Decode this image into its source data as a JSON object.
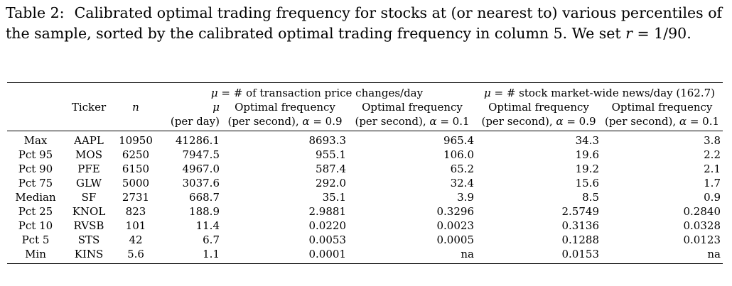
{
  "caption": {
    "label": "Table 2:",
    "text_1": "Calibrated optimal trading frequency for stocks at (or nearest to) various percentiles of the sample, sorted by the calibrated optimal trading frequency in column 5. We set ",
    "var_r": "r",
    "text_2": " = 1/90."
  },
  "table": {
    "group_headers": {
      "g1_mu": "μ",
      "g1_text": " = # of transaction price changes/day",
      "g2_mu": "μ",
      "g2_text": " = # stock market-wide news/day (162.7)"
    },
    "headers": {
      "ticker": "Ticker",
      "n": "n",
      "mu": "μ",
      "mu_unit": "(per day)",
      "of1": "Optimal frequency",
      "of1_unit": "(per second), ",
      "alpha": "α",
      "of1_eq": " = 0.9",
      "of2": "Optimal frequency",
      "of2_unit": "(per second), ",
      "of2_eq": " = 0.1",
      "of3": "Optimal frequency",
      "of3_unit": "(per second), ",
      "of3_eq": " = 0.9",
      "of4": "Optimal frequency",
      "of4_unit": "(per second), ",
      "of4_eq": " = 0.1"
    },
    "rows": [
      {
        "pct": "Max",
        "ticker": "AAPL",
        "n": "10950",
        "mu": "41286.1",
        "f1": "8693.3",
        "f2": "965.4",
        "f3": "34.3",
        "f4": "3.8"
      },
      {
        "pct": "Pct 95",
        "ticker": "MOS",
        "n": "6250",
        "mu": "7947.5",
        "f1": "955.1",
        "f2": "106.0",
        "f3": "19.6",
        "f4": "2.2"
      },
      {
        "pct": "Pct 90",
        "ticker": "PFE",
        "n": "6150",
        "mu": "4967.0",
        "f1": "587.4",
        "f2": "65.2",
        "f3": "19.2",
        "f4": "2.1"
      },
      {
        "pct": "Pct 75",
        "ticker": "GLW",
        "n": "5000",
        "mu": "3037.6",
        "f1": "292.0",
        "f2": "32.4",
        "f3": "15.6",
        "f4": "1.7"
      },
      {
        "pct": "Median",
        "ticker": "SF",
        "n": "2731",
        "mu": "668.7",
        "f1": "35.1",
        "f2": "3.9",
        "f3": "8.5",
        "f4": "0.9"
      },
      {
        "pct": "Pct 25",
        "ticker": "KNOL",
        "n": "823",
        "mu": "188.9",
        "f1": "2.9881",
        "f2": "0.3296",
        "f3": "2.5749",
        "f4": "0.2840"
      },
      {
        "pct": "Pct 10",
        "ticker": "RVSB",
        "n": "101",
        "mu": "11.4",
        "f1": "0.0220",
        "f2": "0.0023",
        "f3": "0.3136",
        "f4": "0.0328"
      },
      {
        "pct": "Pct 5",
        "ticker": "STS",
        "n": "42",
        "mu": "6.7",
        "f1": "0.0053",
        "f2": "0.0005",
        "f3": "0.1288",
        "f4": "0.0123"
      },
      {
        "pct": "Min",
        "ticker": "KINS",
        "n": "5.6",
        "mu": "1.1",
        "f1": "0.0001",
        "f2": "na",
        "f3": "0.0153",
        "f4": "na"
      }
    ]
  }
}
